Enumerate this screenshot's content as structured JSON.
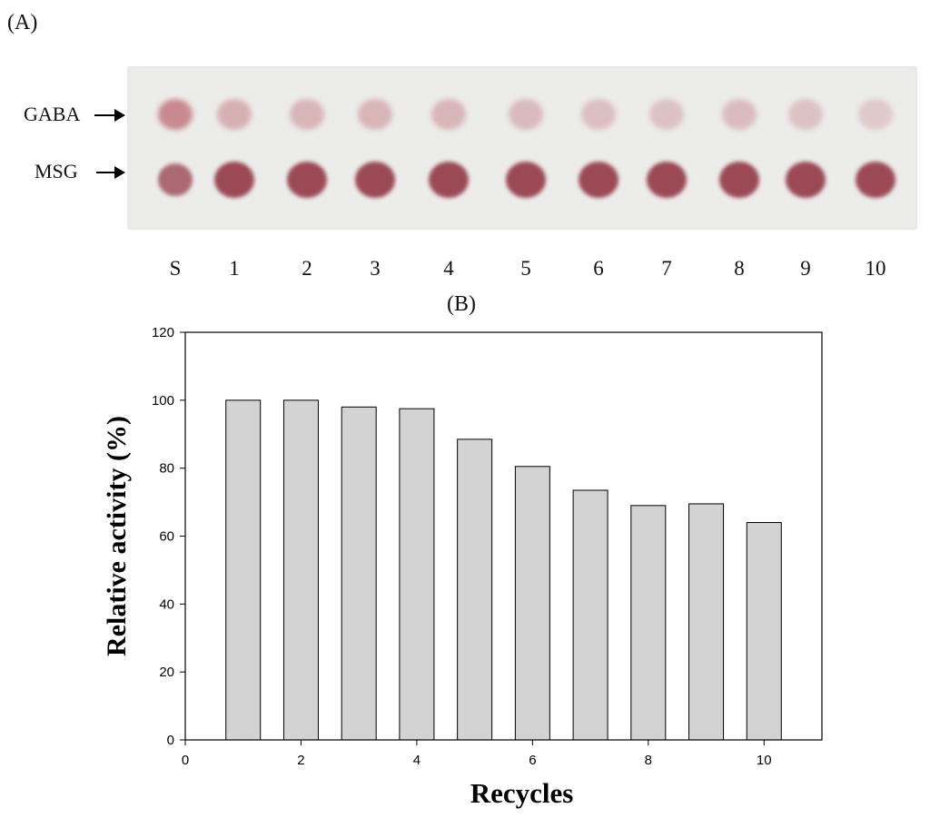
{
  "panel_a": {
    "label": "(A)",
    "rows": [
      {
        "label": "GABA",
        "intensity": [
          1.0,
          0.6,
          0.55,
          0.55,
          0.55,
          0.5,
          0.45,
          0.42,
          0.48,
          0.42,
          0.35
        ]
      },
      {
        "label": "MSG",
        "intensity": [
          0.8,
          1.0,
          1.0,
          1.0,
          1.0,
          1.0,
          1.0,
          1.0,
          1.0,
          1.0,
          1.0
        ]
      }
    ],
    "lanes": [
      "S",
      "1",
      "2",
      "3",
      "4",
      "5",
      "6",
      "7",
      "8",
      "9",
      "10"
    ],
    "colors": {
      "plate": "#ececea",
      "gaba_spot": "#c98a8f",
      "msg_spot": "#9b4a55"
    }
  },
  "panel_b": {
    "label": "(B)"
  },
  "chart_data": {
    "type": "bar",
    "x": [
      1,
      2,
      3,
      4,
      5,
      6,
      7,
      8,
      9,
      10
    ],
    "values": [
      100,
      100,
      98,
      97.5,
      88.5,
      80.5,
      73.5,
      69,
      69.5,
      64
    ],
    "xlabel": "Recycles",
    "ylabel": "Relative activity (%)",
    "xlim": [
      0,
      11
    ],
    "ylim": [
      0,
      120
    ],
    "xticks": [
      0,
      2,
      4,
      6,
      8,
      10
    ],
    "yticks": [
      0,
      20,
      40,
      60,
      80,
      100,
      120
    ],
    "grid": false,
    "bar_color": "#d3d3d3",
    "edge_color": "#000000"
  }
}
